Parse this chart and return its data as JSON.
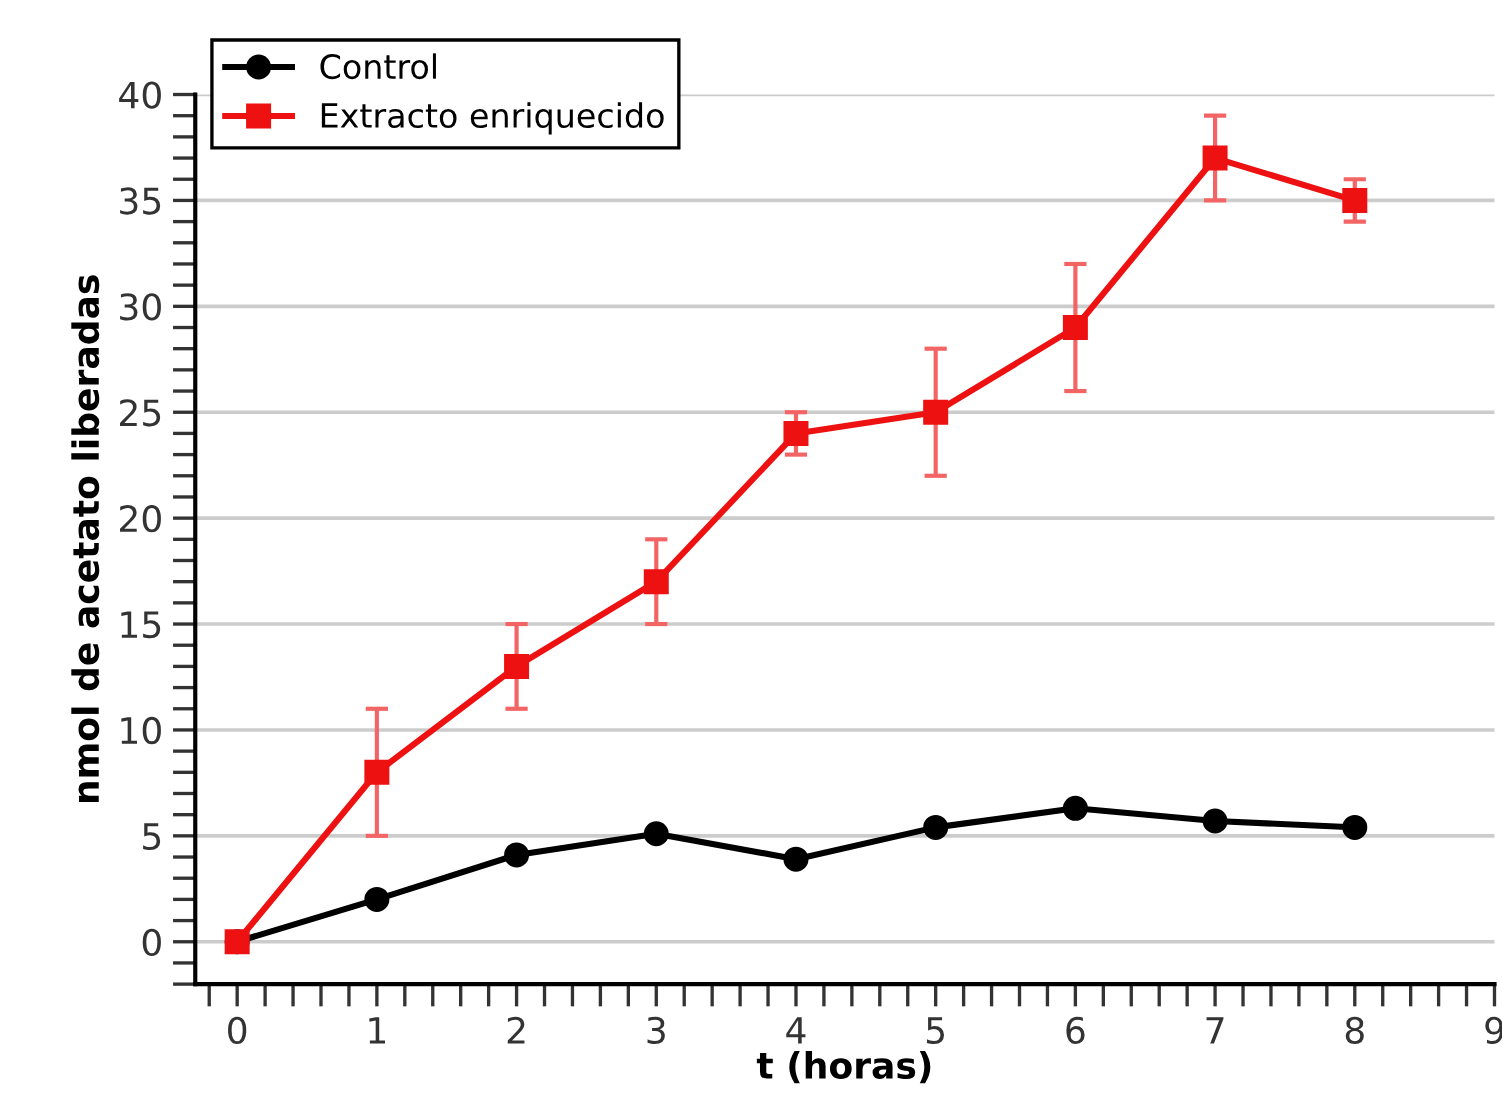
{
  "chart_data": {
    "type": "line",
    "xlabel": "t (horas)",
    "ylabel": "nmol de acetato liberadas",
    "x": [
      0,
      1,
      2,
      3,
      4,
      5,
      6,
      7,
      8
    ],
    "series": [
      {
        "name": "Control",
        "color": "#000000",
        "marker": "circle",
        "values": [
          0,
          2,
          4.1,
          5.1,
          3.9,
          5.4,
          6.3,
          5.7,
          5.4
        ]
      },
      {
        "name": "Extracto enriquecido",
        "color": "#ee1111",
        "marker": "square",
        "values": [
          0,
          8,
          13,
          17,
          24,
          25,
          29,
          37,
          35
        ],
        "errors": [
          null,
          3,
          2,
          2,
          1,
          3,
          3,
          2,
          1
        ]
      }
    ],
    "xlim": [
      -0.3,
      9
    ],
    "ylim": [
      -2,
      40
    ],
    "xticks": [
      0,
      1,
      2,
      3,
      4,
      5,
      6,
      7,
      8,
      9,
      {
        "value": -0.2,
        "label": null
      },
      {
        "value": 0.2,
        "label": null
      },
      {
        "value": 0.4,
        "label": null
      },
      {
        "value": 0.6,
        "label": null
      },
      {
        "value": 0.8,
        "label": null
      },
      {
        "value": 1.2,
        "label": null
      },
      {
        "value": 1.4,
        "label": null
      },
      {
        "value": 1.6,
        "label": null
      },
      {
        "value": 1.8,
        "label": null
      },
      {
        "value": 2.2,
        "label": null
      },
      {
        "value": 2.4,
        "label": null
      },
      {
        "value": 2.6,
        "label": null
      },
      {
        "value": 2.8,
        "label": null
      },
      {
        "value": 3.2,
        "label": null
      },
      {
        "value": 3.4,
        "label": null
      },
      {
        "value": 3.6,
        "label": null
      },
      {
        "value": 3.8,
        "label": null
      },
      {
        "value": 4.2,
        "label": null
      },
      {
        "value": 4.4,
        "label": null
      },
      {
        "value": 4.6,
        "label": null
      },
      {
        "value": 4.8,
        "label": null
      },
      {
        "value": 5.2,
        "label": null
      },
      {
        "value": 5.4,
        "label": null
      },
      {
        "value": 5.6,
        "label": null
      },
      {
        "value": 5.8,
        "label": null
      },
      {
        "value": 6.2,
        "label": null
      },
      {
        "value": 6.4,
        "label": null
      },
      {
        "value": 6.6,
        "label": null
      },
      {
        "value": 6.8,
        "label": null
      },
      {
        "value": 7.2,
        "label": null
      },
      {
        "value": 7.4,
        "label": null
      },
      {
        "value": 7.6,
        "label": null
      },
      {
        "value": 7.8,
        "label": null
      },
      {
        "value": 8.2,
        "label": null
      },
      {
        "value": 8.4,
        "label": null
      },
      {
        "value": 8.6,
        "label": null
      },
      {
        "value": 8.8,
        "label": null
      }
    ],
    "yticks": [
      0,
      5,
      10,
      15,
      20,
      25,
      30,
      35,
      40,
      {
        "value": -2,
        "label": null
      },
      {
        "value": -1,
        "label": null
      },
      {
        "value": 1,
        "label": null
      },
      {
        "value": 2,
        "label": null
      },
      {
        "value": 3,
        "label": null
      },
      {
        "value": 4,
        "label": null
      },
      {
        "value": 6,
        "label": null
      },
      {
        "value": 7,
        "label": null
      },
      {
        "value": 8,
        "label": null
      },
      {
        "value": 9,
        "label": null
      },
      {
        "value": 11,
        "label": null
      },
      {
        "value": 12,
        "label": null
      },
      {
        "value": 13,
        "label": null
      },
      {
        "value": 14,
        "label": null
      },
      {
        "value": 16,
        "label": null
      },
      {
        "value": 17,
        "label": null
      },
      {
        "value": 18,
        "label": null
      },
      {
        "value": 19,
        "label": null
      },
      {
        "value": 21,
        "label": null
      },
      {
        "value": 22,
        "label": null
      },
      {
        "value": 23,
        "label": null
      },
      {
        "value": 24,
        "label": null
      },
      {
        "value": 26,
        "label": null
      },
      {
        "value": 27,
        "label": null
      },
      {
        "value": 28,
        "label": null
      },
      {
        "value": 29,
        "label": null
      },
      {
        "value": 31,
        "label": null
      },
      {
        "value": 32,
        "label": null
      },
      {
        "value": 33,
        "label": null
      },
      {
        "value": 34,
        "label": null
      },
      {
        "value": 36,
        "label": null
      },
      {
        "value": 37,
        "label": null
      },
      {
        "value": 38,
        "label": null
      },
      {
        "value": 39,
        "label": null
      }
    ],
    "grid": "y",
    "legend": "top left",
    "line_style": "solid"
  }
}
